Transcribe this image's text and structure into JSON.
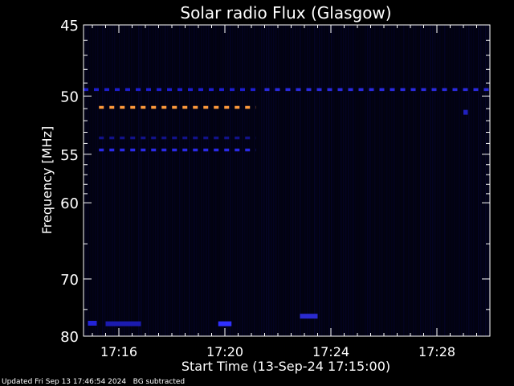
{
  "chart_data": {
    "type": "heatmap",
    "title": "Solar radio Flux (Glasgow)",
    "xlabel": "Start Time (13-Sep-24 17:15:00)",
    "ylabel": "Frequency [MHz]",
    "x_unit": "time",
    "xlim": [
      "17:14:40",
      "17:30:00"
    ],
    "ylim": [
      45,
      80
    ],
    "x_ticks": [
      "17:16",
      "17:20",
      "17:24",
      "17:28"
    ],
    "y_ticks": [
      45,
      50,
      55,
      60,
      70,
      80
    ],
    "grid": false,
    "background_color": "#02020f",
    "features": [
      {
        "type": "dashed-line",
        "freq": 50.9,
        "start": "17:15:15",
        "end": "17:21:10",
        "color": "#ff9a3c"
      },
      {
        "type": "dashed-line",
        "freq": 49.5,
        "start": "17:14:40",
        "end": "17:21:10",
        "color": "#1e1ecf"
      },
      {
        "type": "dashed-line",
        "freq": 49.5,
        "start": "17:21:30",
        "end": "17:30:00",
        "color": "#2a2ae0"
      },
      {
        "type": "dashed-line",
        "freq": 53.5,
        "start": "17:15:15",
        "end": "17:21:10",
        "color": "#12128a"
      },
      {
        "type": "dashed-line",
        "freq": 54.6,
        "start": "17:15:15",
        "end": "17:21:10",
        "color": "#2a2ae8"
      },
      {
        "type": "blob",
        "freq": 77.5,
        "start": "17:14:50",
        "end": "17:15:10",
        "color": "#2323d8"
      },
      {
        "type": "blob",
        "freq": 77.6,
        "start": "17:15:30",
        "end": "17:16:50",
        "color": "#1b1bb0"
      },
      {
        "type": "blob",
        "freq": 77.6,
        "start": "17:19:45",
        "end": "17:20:15",
        "color": "#3030ff"
      },
      {
        "type": "blob",
        "freq": 76.2,
        "start": "17:22:50",
        "end": "17:23:30",
        "color": "#2a2ad0"
      },
      {
        "type": "blob",
        "freq": 51.3,
        "start": "17:29:00",
        "end": "17:29:10",
        "color": "#2020c0"
      }
    ]
  },
  "footer": {
    "updated": "Updated Fri Sep 13 17:46:54 2024",
    "note": "BG subtracted"
  }
}
